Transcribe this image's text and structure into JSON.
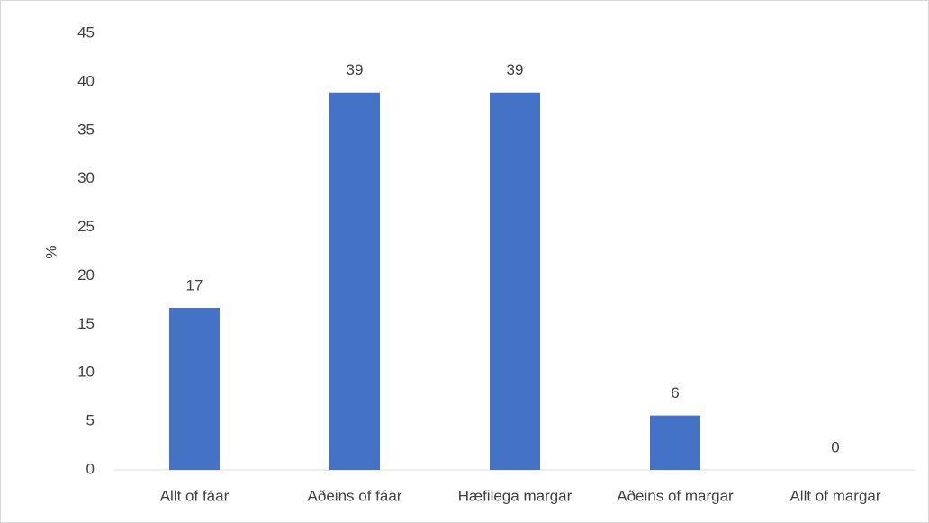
{
  "chart_data": {
    "type": "bar",
    "ylabel": "%",
    "categories": [
      "Allt of fáar",
      "Aðeins of fáar",
      "Hæfilega margar",
      "Aðeins of margar",
      "Allt of margar"
    ],
    "values": [
      16.7,
      38.9,
      38.9,
      5.6,
      0
    ],
    "value_labels": [
      "17",
      "39",
      "39",
      "6",
      "0"
    ],
    "color": "#4472c4",
    "ylim": [
      0,
      45
    ],
    "yticks": [
      0,
      5,
      10,
      15,
      20,
      25,
      30,
      35,
      40,
      45
    ],
    "grid": false
  }
}
